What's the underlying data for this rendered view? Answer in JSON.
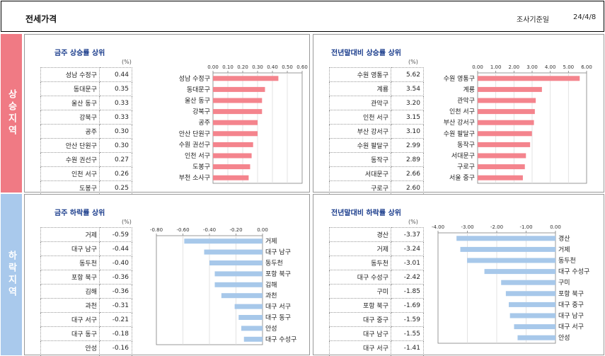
{
  "header": {
    "title": "전세가격",
    "date_label": "조사기준일",
    "date_value": "24/4/8"
  },
  "side": {
    "up": "상승지역",
    "down": "하락지역"
  },
  "pct_unit": "(%)",
  "colors": {
    "up_bar": "#f4848d",
    "down_bar": "#a7c8ea",
    "axis": "#7f7f7f",
    "grid": "#dcdcdc"
  },
  "chart_data": [
    {
      "id": "week_up",
      "type": "bar",
      "orientation": "horizontal",
      "title": "금주 상승률 상위",
      "categories": [
        "성남 수정구",
        "동대문구",
        "울산 동구",
        "강북구",
        "공주",
        "안산 단원구",
        "수원 권선구",
        "인천 서구",
        "도봉구",
        "부천 소사구"
      ],
      "values": [
        0.44,
        0.35,
        0.33,
        0.33,
        0.3,
        0.3,
        0.27,
        0.26,
        0.25,
        0.24
      ],
      "value_labels": [
        "0.44",
        "0.35",
        "0.33",
        "0.33",
        "0.30",
        "0.30",
        "0.27",
        "0.26",
        "0.25",
        "0.24"
      ],
      "xlim": [
        0,
        0.6
      ],
      "ticks": [
        "0.00",
        "0.10",
        "0.20",
        "0.30",
        "0.40",
        "0.50",
        "0.60"
      ],
      "grid": true,
      "color": "#f4848d",
      "tick_position": "top",
      "label_side": "left"
    },
    {
      "id": "ytd_up",
      "type": "bar",
      "orientation": "horizontal",
      "title": "전년말대비 상승률 상위",
      "categories": [
        "수원 영통구",
        "계룡",
        "관악구",
        "인천 서구",
        "부산 강서구",
        "수원 팔달구",
        "동작구",
        "서대문구",
        "구로구",
        "서울 중구"
      ],
      "values": [
        5.62,
        3.54,
        3.2,
        3.15,
        3.1,
        2.99,
        2.89,
        2.66,
        2.6,
        2.49
      ],
      "value_labels": [
        "5.62",
        "3.54",
        "3.20",
        "3.15",
        "3.10",
        "2.99",
        "2.89",
        "2.66",
        "2.60",
        "2.49"
      ],
      "xlim": [
        0,
        6
      ],
      "ticks": [
        "0.00",
        "1.00",
        "2.00",
        "3.00",
        "4.00",
        "5.00",
        "6.00"
      ],
      "grid": true,
      "color": "#f4848d",
      "tick_position": "top",
      "label_side": "left"
    },
    {
      "id": "week_down",
      "type": "bar",
      "orientation": "horizontal",
      "title": "금주 하락률 상위",
      "categories": [
        "거제",
        "대구 남구",
        "동두천",
        "포항 북구",
        "김해",
        "과천",
        "대구 서구",
        "대구 동구",
        "안성",
        "대구 수성구"
      ],
      "values": [
        -0.59,
        -0.44,
        -0.4,
        -0.36,
        -0.36,
        -0.31,
        -0.21,
        -0.18,
        -0.16,
        -0.14
      ],
      "value_labels": [
        "-0.59",
        "-0.44",
        "-0.40",
        "-0.36",
        "-0.36",
        "-0.31",
        "-0.21",
        "-0.18",
        "-0.16",
        "-0.14"
      ],
      "xlim": [
        -0.8,
        0
      ],
      "ticks": [
        "-0.80",
        "-0.60",
        "-0.40",
        "-0.20",
        "0.00"
      ],
      "grid": true,
      "color": "#a7c8ea",
      "tick_position": "top",
      "label_side": "right"
    },
    {
      "id": "ytd_down",
      "type": "bar",
      "orientation": "horizontal",
      "title": "전년말대비 하락률 상위",
      "categories": [
        "경산",
        "거제",
        "동두천",
        "대구 수성구",
        "구미",
        "포항 북구",
        "대구 중구",
        "대구 남구",
        "대구 서구",
        "안성"
      ],
      "values": [
        -3.37,
        -3.24,
        -3.01,
        -2.42,
        -1.85,
        -1.69,
        -1.59,
        -1.55,
        -1.41,
        -1.29
      ],
      "value_labels": [
        "-3.37",
        "-3.24",
        "-3.01",
        "-2.42",
        "-1.85",
        "-1.69",
        "-1.59",
        "-1.55",
        "-1.41",
        "-1.29"
      ],
      "xlim": [
        -4,
        0
      ],
      "ticks": [
        "-4.00",
        "-3.00",
        "-2.00",
        "-1.00",
        "0.00"
      ],
      "grid": true,
      "color": "#a7c8ea",
      "tick_position": "top",
      "label_side": "right"
    }
  ]
}
